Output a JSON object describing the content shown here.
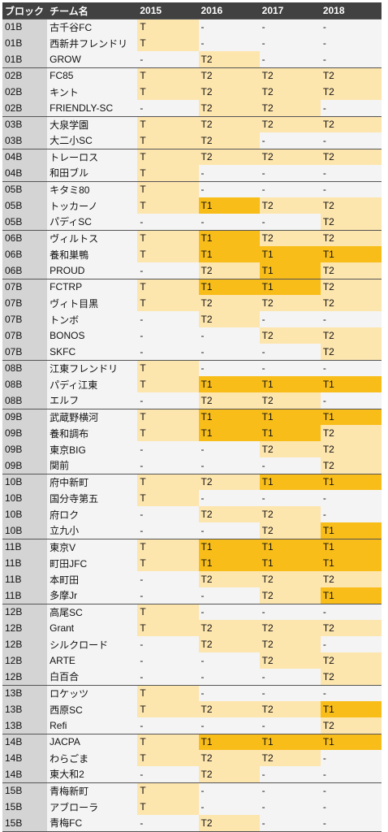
{
  "header": {
    "block": "ブロック",
    "team": "チーム名",
    "years": [
      "2015",
      "2016",
      "2017",
      "2018"
    ]
  },
  "rows": [
    {
      "block": "01B",
      "team": "古千谷FC",
      "vals": [
        "T",
        "-",
        "-",
        "-"
      ]
    },
    {
      "block": "01B",
      "team": "西新井フレンドリ",
      "vals": [
        "T",
        "-",
        "-",
        "-"
      ]
    },
    {
      "block": "01B",
      "team": "GROW",
      "vals": [
        "-",
        "T2",
        "-",
        "-"
      ]
    },
    {
      "block": "02B",
      "team": "FC85",
      "vals": [
        "T",
        "T2",
        "T2",
        "T2"
      ]
    },
    {
      "block": "02B",
      "team": "キント",
      "vals": [
        "T",
        "T2",
        "T2",
        "T2"
      ]
    },
    {
      "block": "02B",
      "team": "FRIENDLY-SC",
      "vals": [
        "-",
        "T2",
        "T2",
        "-"
      ]
    },
    {
      "block": "03B",
      "team": "大泉学園",
      "vals": [
        "T",
        "T2",
        "T2",
        "T2"
      ]
    },
    {
      "block": "03B",
      "team": "大二小SC",
      "vals": [
        "T",
        "T2",
        "-",
        "-"
      ]
    },
    {
      "block": "04B",
      "team": "トレーロス",
      "vals": [
        "T",
        "T2",
        "T2",
        "T2"
      ]
    },
    {
      "block": "04B",
      "team": "和田ブル",
      "vals": [
        "T",
        "-",
        "-",
        "-"
      ]
    },
    {
      "block": "05B",
      "team": "キタミ80",
      "vals": [
        "T",
        "-",
        "-",
        "-"
      ]
    },
    {
      "block": "05B",
      "team": "トッカーノ",
      "vals": [
        "T",
        "T1",
        "T2",
        "T2"
      ]
    },
    {
      "block": "05B",
      "team": "パディSC",
      "vals": [
        "-",
        "-",
        "-",
        "T2"
      ]
    },
    {
      "block": "06B",
      "team": "ヴィルトス",
      "vals": [
        "T",
        "T1",
        "T2",
        "T2"
      ]
    },
    {
      "block": "06B",
      "team": "養和巣鴨",
      "vals": [
        "T",
        "T1",
        "T1",
        "T1"
      ]
    },
    {
      "block": "06B",
      "team": "PROUD",
      "vals": [
        "-",
        "T2",
        "T1",
        "T2"
      ]
    },
    {
      "block": "07B",
      "team": "FCTRP",
      "vals": [
        "T",
        "T1",
        "T1",
        "T2"
      ]
    },
    {
      "block": "07B",
      "team": "ヴィト目黒",
      "vals": [
        "T",
        "T2",
        "T2",
        "T2"
      ]
    },
    {
      "block": "07B",
      "team": "トンボ",
      "vals": [
        "-",
        "T2",
        "-",
        "-"
      ]
    },
    {
      "block": "07B",
      "team": "BONOS",
      "vals": [
        "-",
        "-",
        "T2",
        "T2"
      ]
    },
    {
      "block": "07B",
      "team": "SKFC",
      "vals": [
        "-",
        "-",
        "-",
        "T2"
      ]
    },
    {
      "block": "08B",
      "team": "江東フレンドリ",
      "vals": [
        "T",
        "-",
        "-",
        "-"
      ]
    },
    {
      "block": "08B",
      "team": "パディ江東",
      "vals": [
        "T",
        "T1",
        "T1",
        "T1"
      ]
    },
    {
      "block": "08B",
      "team": "エルフ",
      "vals": [
        "-",
        "T2",
        "T2",
        "-"
      ]
    },
    {
      "block": "09B",
      "team": "武蔵野横河",
      "vals": [
        "T",
        "T1",
        "T1",
        "T1"
      ]
    },
    {
      "block": "09B",
      "team": "養和調布",
      "vals": [
        "T",
        "T1",
        "T1",
        "T2"
      ]
    },
    {
      "block": "09B",
      "team": "東京BIG",
      "vals": [
        "-",
        "-",
        "T2",
        "T2"
      ]
    },
    {
      "block": "09B",
      "team": "関前",
      "vals": [
        "-",
        "-",
        "-",
        "T2"
      ]
    },
    {
      "block": "10B",
      "team": "府中新町",
      "vals": [
        "T",
        "T2",
        "T1",
        "T1"
      ]
    },
    {
      "block": "10B",
      "team": "国分寺第五",
      "vals": [
        "T",
        "-",
        "-",
        "-"
      ]
    },
    {
      "block": "10B",
      "team": "府ロク",
      "vals": [
        "-",
        "T2",
        "T2",
        "-"
      ]
    },
    {
      "block": "10B",
      "team": "立九小",
      "vals": [
        "-",
        "-",
        "T2",
        "T1"
      ]
    },
    {
      "block": "11B",
      "team": "東京V",
      "vals": [
        "T",
        "T1",
        "T1",
        "T1"
      ]
    },
    {
      "block": "11B",
      "team": "町田JFC",
      "vals": [
        "T",
        "T1",
        "T1",
        "T1"
      ]
    },
    {
      "block": "11B",
      "team": "本町田",
      "vals": [
        "-",
        "T2",
        "T2",
        "T2"
      ]
    },
    {
      "block": "11B",
      "team": "多摩Jr",
      "vals": [
        "-",
        "-",
        "T2",
        "T1"
      ]
    },
    {
      "block": "12B",
      "team": "高尾SC",
      "vals": [
        "T",
        "-",
        "-",
        "-"
      ]
    },
    {
      "block": "12B",
      "team": "Grant",
      "vals": [
        "T",
        "T2",
        "T2",
        "T2"
      ]
    },
    {
      "block": "12B",
      "team": "シルクロード",
      "vals": [
        "-",
        "T2",
        "T2",
        "-"
      ]
    },
    {
      "block": "12B",
      "team": "ARTE",
      "vals": [
        "-",
        "-",
        "T2",
        "T2"
      ]
    },
    {
      "block": "12B",
      "team": "白百合",
      "vals": [
        "-",
        "-",
        "-",
        "T2"
      ]
    },
    {
      "block": "13B",
      "team": "ロケッツ",
      "vals": [
        "T",
        "-",
        "-",
        "-"
      ]
    },
    {
      "block": "13B",
      "team": "西原SC",
      "vals": [
        "T",
        "T2",
        "T2",
        "T1"
      ]
    },
    {
      "block": "13B",
      "team": "Refi",
      "vals": [
        "-",
        "-",
        "-",
        "T2"
      ]
    },
    {
      "block": "14B",
      "team": "JACPA",
      "vals": [
        "T",
        "T1",
        "T1",
        "T1"
      ]
    },
    {
      "block": "14B",
      "team": "わらごま",
      "vals": [
        "T",
        "T2",
        "T2",
        "-"
      ]
    },
    {
      "block": "14B",
      "team": "東大和2",
      "vals": [
        "-",
        "T2",
        "-",
        "-"
      ]
    },
    {
      "block": "15B",
      "team": "青梅新町",
      "vals": [
        "T",
        "-",
        "-",
        "-"
      ]
    },
    {
      "block": "15B",
      "team": "アブローラ",
      "vals": [
        "T",
        "-",
        "-",
        "-"
      ]
    },
    {
      "block": "15B",
      "team": "青梅FC",
      "vals": [
        "-",
        "T2",
        "-",
        "-"
      ]
    }
  ],
  "colors": {
    "header_bg": "#414141",
    "block_bg": "#d4d4d4",
    "light_bg": "#f4f4f4",
    "T_T2_bg": "#fde5ae",
    "T1_bg": "#f8bd19"
  }
}
